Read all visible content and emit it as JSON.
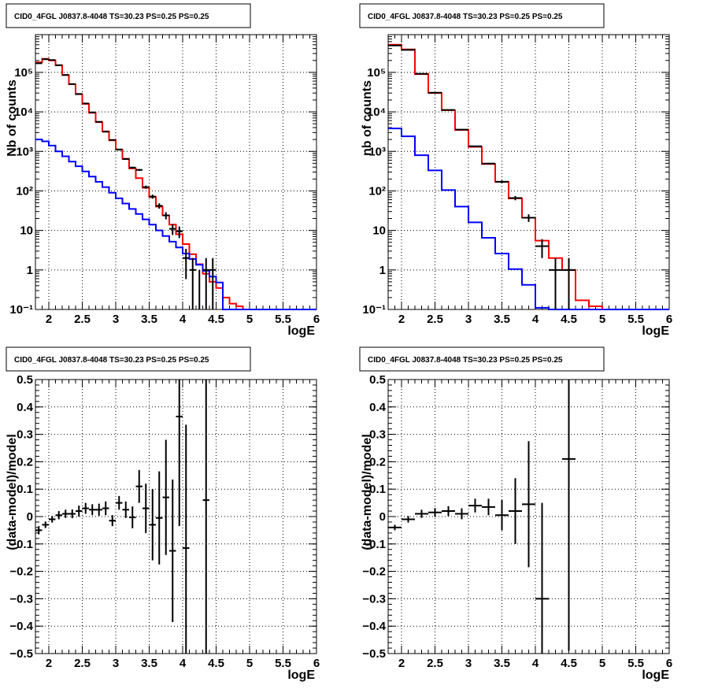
{
  "chart_data": [
    {
      "type": "line",
      "title": "CID0_4FGL J0837.8-4048 TS=30.23 PS=0.25 PS=0.25",
      "xlabel": "logE",
      "ylabel": "Nb of counts",
      "xlim": [
        1.8,
        6
      ],
      "ylim": [
        0.1,
        900000
      ],
      "yscale": "log",
      "grid": true,
      "xticks": [
        "2",
        "2.5",
        "3",
        "3.5",
        "4",
        "4.5",
        "5",
        "5.5",
        "6"
      ],
      "yticks": [
        "10⁻¹",
        "1",
        "10",
        "10²",
        "10³",
        "10⁴",
        "10⁵"
      ],
      "bin_edges": [
        1.8,
        1.9,
        2.0,
        2.1,
        2.2,
        2.3,
        2.4,
        2.5,
        2.6,
        2.7,
        2.8,
        2.9,
        3.0,
        3.1,
        3.2,
        3.3,
        3.4,
        3.5,
        3.6,
        3.7,
        3.8,
        3.9,
        4.0,
        4.1,
        4.2,
        4.3,
        4.4,
        4.5,
        4.6,
        4.7,
        4.8,
        4.9,
        5.0,
        5.1,
        5.2,
        5.3,
        5.4,
        5.5,
        5.6,
        5.7,
        5.8,
        5.9,
        6.0
      ],
      "series": [
        {
          "color": "#ff0000",
          "style": "step",
          "values": [
            180000,
            220000,
            200000,
            150000,
            85000,
            50000,
            28000,
            16000,
            9500,
            5500,
            3200,
            1900,
            1100,
            650,
            370,
            210,
            120,
            70,
            40,
            24,
            14,
            8,
            4.5,
            2.5,
            1.4,
            0.8,
            0.5,
            0.35,
            0.2,
            0.14,
            0.12,
            0.1,
            0.1,
            0.1,
            0.1,
            0.1,
            0.1,
            0.1,
            0.1,
            0.1,
            0.1,
            0.1
          ]
        },
        {
          "color": "#0000ff",
          "style": "step",
          "values": [
            2000,
            1800,
            1400,
            1000,
            750,
            550,
            420,
            310,
            230,
            170,
            125,
            90,
            65,
            48,
            35,
            26,
            19,
            14,
            10,
            7.2,
            5.2,
            3.7,
            2.6,
            1.9,
            1.35,
            0.95,
            0.68,
            0.48,
            0.1,
            0.1,
            0.1,
            0.1,
            0.1,
            0.1,
            0.1,
            0.1,
            0.1,
            0.1,
            0.1,
            0.1,
            0.1,
            0.1
          ]
        },
        {
          "color": "#000000",
          "style": "errorbar",
          "x": [
            1.85,
            1.95,
            2.05,
            2.15,
            2.25,
            2.35,
            2.45,
            2.55,
            2.65,
            2.75,
            2.85,
            2.95,
            3.05,
            3.15,
            3.25,
            3.35,
            3.45,
            3.55,
            3.65,
            3.75,
            3.85,
            3.95,
            4.05,
            4.15,
            4.25,
            4.35,
            4.45
          ],
          "values": [
            170000,
            215000,
            205000,
            152000,
            86000,
            50500,
            28400,
            16300,
            9700,
            5600,
            3150,
            1950,
            1120,
            640,
            390,
            340,
            125,
            72,
            42,
            24,
            11,
            9.5,
            2,
            1,
            0,
            1,
            1
          ]
        }
      ]
    },
    {
      "type": "line",
      "title": "CID0_4FGL J0837.8-4048 TS=30.23 PS=0.25 PS=0.25",
      "xlabel": "logE",
      "ylabel": "nb of counts",
      "xlim": [
        1.8,
        6
      ],
      "ylim": [
        0.1,
        900000
      ],
      "yscale": "log",
      "grid": true,
      "xticks": [
        "2",
        "2.5",
        "3",
        "3.5",
        "4",
        "4.5",
        "5",
        "5.5",
        "6"
      ],
      "yticks": [
        "10⁻¹",
        "1",
        "10",
        "10²",
        "10³",
        "10⁴",
        "10⁵"
      ],
      "bin_edges": [
        1.8,
        2.0,
        2.2,
        2.4,
        2.6,
        2.8,
        3.0,
        3.2,
        3.4,
        3.6,
        3.8,
        4.0,
        4.2,
        4.4,
        4.6,
        4.8,
        5.0,
        5.2,
        5.4,
        5.6,
        5.8,
        6.0
      ],
      "series": [
        {
          "color": "#ff0000",
          "style": "step",
          "values": [
            500000,
            380000,
            90000,
            30000,
            11000,
            3500,
            1300,
            480,
            170,
            65,
            21,
            5.5,
            2,
            1,
            0.17,
            0.12,
            0.1,
            0.1,
            0.1,
            0.1,
            0.1
          ]
        },
        {
          "color": "#0000ff",
          "style": "step",
          "values": [
            3800,
            2400,
            800,
            330,
            105,
            40,
            16,
            6.5,
            2.6,
            1.05,
            0.42,
            0.11,
            0.1,
            0.1,
            0.1,
            0.1,
            0.1,
            0.1,
            0.1,
            0.1,
            0.1
          ]
        },
        {
          "color": "#000000",
          "style": "errorbar",
          "x": [
            1.9,
            2.1,
            2.3,
            2.5,
            2.7,
            2.9,
            3.1,
            3.3,
            3.5,
            3.7,
            3.9,
            4.1,
            4.3,
            4.5
          ],
          "values": [
            480000,
            370000,
            92000,
            30500,
            11200,
            3550,
            1350,
            490,
            170,
            66,
            21,
            4,
            1,
            1
          ]
        }
      ]
    },
    {
      "type": "scatter",
      "title": "CID0_4FGL J0837.8-4048 TS=30.23 PS=0.25 PS=0.25",
      "xlabel": "logE",
      "ylabel": "(data-model)/model",
      "xlim": [
        1.8,
        6
      ],
      "ylim": [
        -0.5,
        0.5
      ],
      "grid": true,
      "xticks": [
        "2",
        "2.5",
        "3",
        "3.5",
        "4",
        "4.5",
        "5",
        "5.5",
        "6"
      ],
      "yticks": [
        "−0.5",
        "−0.4",
        "−0.3",
        "−0.2",
        "−0.1",
        "0",
        "0.1",
        "0.2",
        "0.3",
        "0.4",
        "0.5"
      ],
      "series": [
        {
          "color": "#000000",
          "style": "errorbar",
          "x": [
            1.85,
            1.95,
            2.05,
            2.15,
            2.25,
            2.35,
            2.45,
            2.55,
            2.65,
            2.75,
            2.85,
            2.95,
            3.05,
            3.15,
            3.25,
            3.35,
            3.45,
            3.55,
            3.65,
            3.75,
            3.85,
            3.95,
            4.05,
            4.35
          ],
          "y": [
            -0.05,
            -0.03,
            -0.01,
            0.005,
            0.01,
            0.01,
            0.02,
            0.03,
            0.025,
            0.025,
            0.03,
            -0.015,
            0.05,
            0.025,
            -0.003,
            0.11,
            0.03,
            -0.03,
            -0.005,
            0.07,
            -0.125,
            0.365,
            -0.115,
            0.06
          ],
          "err": [
            0.015,
            0.012,
            0.012,
            0.015,
            0.015,
            0.016,
            0.02,
            0.02,
            0.02,
            0.022,
            0.025,
            0.02,
            0.025,
            0.03,
            0.04,
            0.06,
            0.09,
            0.13,
            0.17,
            0.21,
            0.26,
            0.4,
            0.45,
            0.6
          ]
        }
      ]
    },
    {
      "type": "scatter",
      "title": "CID0_4FGL J0837.8-4048 TS=30.23 PS=0.25 PS=0.25",
      "xlabel": "logE",
      "ylabel": "(data-model)/model",
      "xlim": [
        1.8,
        6
      ],
      "ylim": [
        -0.5,
        0.5
      ],
      "grid": true,
      "xticks": [
        "2",
        "2.5",
        "3",
        "3.5",
        "4",
        "4.5",
        "5",
        "5.5",
        "6"
      ],
      "yticks": [
        "−0.5",
        "−0.4",
        "−0.3",
        "−0.2",
        "−0.1",
        "0",
        "0.1",
        "0.2",
        "0.3",
        "0.4",
        "0.5"
      ],
      "series": [
        {
          "color": "#000000",
          "style": "errorbar",
          "x": [
            1.9,
            2.1,
            2.3,
            2.5,
            2.7,
            2.9,
            3.1,
            3.3,
            3.5,
            3.7,
            3.9,
            4.1,
            4.5
          ],
          "y": [
            -0.04,
            -0.01,
            0.01,
            0.015,
            0.02,
            0.01,
            0.04,
            0.035,
            0.005,
            0.02,
            0.045,
            -0.3,
            0.21
          ],
          "err": [
            0.01,
            0.012,
            0.015,
            0.016,
            0.018,
            0.02,
            0.025,
            0.03,
            0.055,
            0.12,
            0.23,
            0.35,
            0.7
          ]
        }
      ]
    }
  ]
}
